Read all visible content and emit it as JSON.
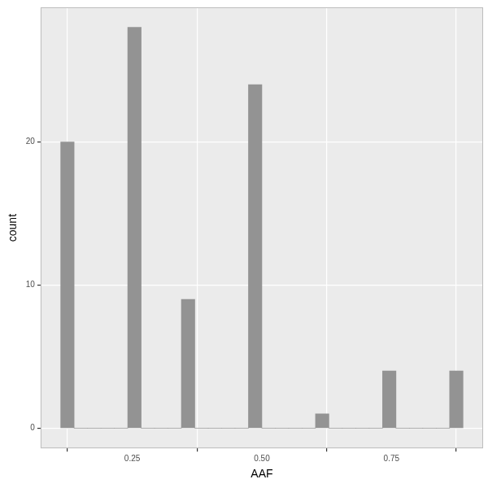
{
  "chart_data": {
    "type": "histogram",
    "x_label": "AAF",
    "y_label": "count",
    "bins": [
      0.1121,
      0.1379,
      0.1638,
      0.1897,
      0.2155,
      0.2414,
      0.2672,
      0.2931,
      0.319,
      0.3448,
      0.3707,
      0.3966,
      0.4224,
      0.4483,
      0.4741,
      0.5,
      0.5259,
      0.5517,
      0.5776,
      0.6034,
      0.6293,
      0.6552,
      0.681,
      0.7069,
      0.7328,
      0.7586,
      0.7845,
      0.8103,
      0.8362,
      0.8621,
      0.8879
    ],
    "counts": [
      20,
      0,
      0,
      0,
      0,
      28,
      0,
      0,
      0,
      9,
      0,
      0,
      0,
      0,
      24,
      0,
      0,
      0,
      0,
      1,
      0,
      0,
      0,
      0,
      4,
      0,
      0,
      0,
      0,
      4
    ],
    "color": "#939393",
    "xlim": [
      0.0733,
      0.9267
    ],
    "ylim": [
      -1.4,
      29.4
    ],
    "xticks": [
      0.25,
      {
        "value": 0.5,
        "label": "0.50"
      },
      0.75
    ],
    "yticks": [
      0,
      10,
      20
    ],
    "grid": true
  }
}
